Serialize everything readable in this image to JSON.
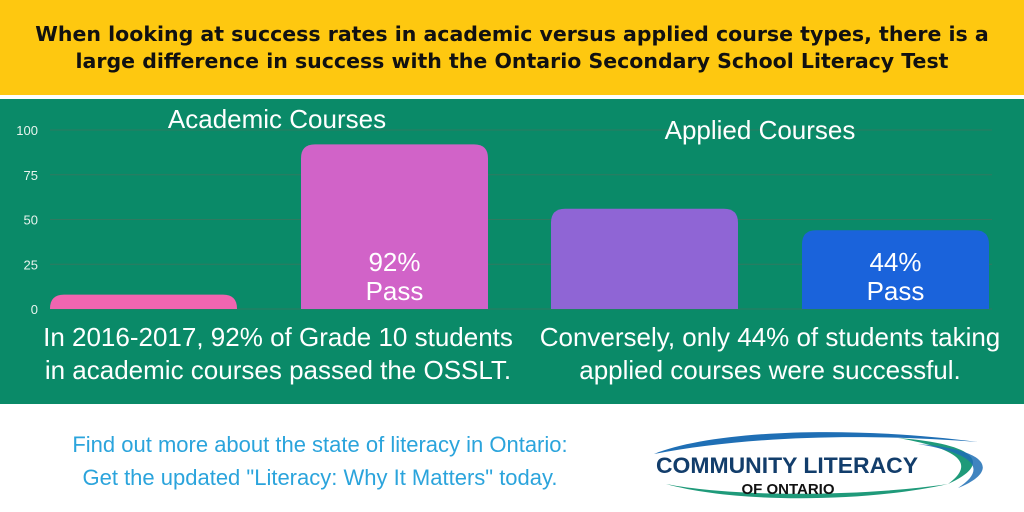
{
  "headline": "When looking at success rates in academic versus applied course types, there is a large difference in success with the Ontario Secondary School Literacy Test",
  "colors": {
    "banner": "#fec810",
    "panel": "#0a8a68",
    "footer_text": "#2ba4dc",
    "logo_blue": "#1f6fb5",
    "logo_green": "#1f9a7a",
    "logo_text": "#123d6b"
  },
  "chart_data": {
    "type": "bar",
    "groups": [
      "Academic Courses",
      "Applied Courses"
    ],
    "bars": [
      {
        "group": 0,
        "value": 8,
        "color": "#f165b0",
        "label": ""
      },
      {
        "group": 0,
        "value": 92,
        "color": "#d163c8",
        "label": "92%\nPass"
      },
      {
        "group": 1,
        "value": 56,
        "color": "#8f65d5",
        "label": ""
      },
      {
        "group": 1,
        "value": 44,
        "color": "#1a63db",
        "label": "44%\nPass"
      }
    ],
    "yticks": [
      0,
      25,
      50,
      75,
      100
    ],
    "ylim": [
      0,
      100
    ],
    "grid": true
  },
  "captions": {
    "academic": "In 2016-2017, 92% of Grade 10 students in academic courses passed the OSSLT.",
    "applied": "Conversely, only 44% of students taking applied courses were successful."
  },
  "footer": {
    "line1": "Find out more about the state of literacy in Ontario:",
    "line2": "Get the updated \"Literacy: Why It Matters\" today."
  },
  "logo": {
    "name": "COMMUNITY LITERACY",
    "sub": "OF ONTARIO"
  }
}
